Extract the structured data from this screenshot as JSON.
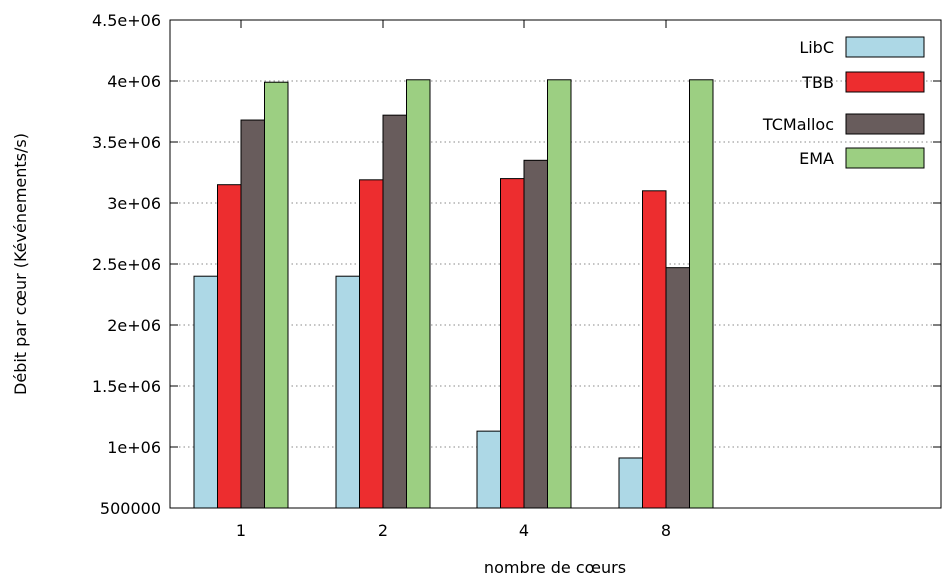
{
  "chart_data": {
    "type": "bar",
    "title": "",
    "xlabel": "nombre de cœurs",
    "ylabel": "Débit par cœur (Kévénements/s)",
    "categories": [
      "1",
      "2",
      "4",
      "8"
    ],
    "ylim": [
      500000,
      4500000
    ],
    "yticks": [
      500000,
      1000000,
      1500000,
      2000000,
      2500000,
      3000000,
      3500000,
      4000000,
      4500000
    ],
    "ytick_labels": [
      "500000",
      "1e+06",
      "1.5e+06",
      "2e+06",
      "2.5e+06",
      "3e+06",
      "3.5e+06",
      "4e+06",
      "4.5e+06"
    ],
    "grid": "horizontal dotted",
    "legend_position": "top-right",
    "series": [
      {
        "name": "LibC",
        "color": "#add8e6",
        "values": [
          2400000,
          2400000,
          1130000,
          910000
        ]
      },
      {
        "name": "TBB",
        "color": "#ed2d2f",
        "values": [
          3150000,
          3190000,
          3200000,
          3100000
        ]
      },
      {
        "name": "TCMalloc",
        "color": "#685c5c",
        "values": [
          3680000,
          3720000,
          3350000,
          2470000
        ]
      },
      {
        "name": "EMA",
        "color": "#9ccf82",
        "values": [
          3990000,
          4010000,
          4010000,
          4010000
        ]
      }
    ]
  }
}
